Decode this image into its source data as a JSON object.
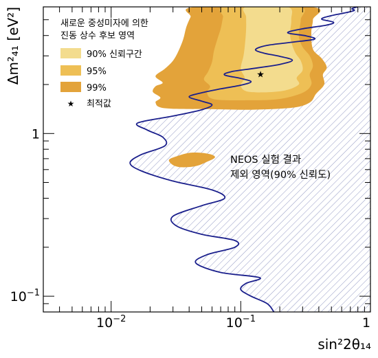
{
  "chart_data": {
    "type": "area",
    "title": "",
    "xlabel": "sin²2θ₁₄",
    "ylabel": "Δm²₄₁ [eV²]",
    "xscale": "log",
    "yscale": "log",
    "xlim": [
      0.003,
      1.0
    ],
    "ylim": [
      0.08,
      6.0
    ],
    "grid": false,
    "x_ticks": [
      {
        "value": 0.01,
        "base": "10",
        "exp": "−2"
      },
      {
        "value": 0.1,
        "base": "10",
        "exp": "−1"
      },
      {
        "value": 1.0,
        "base": "1",
        "exp": ""
      }
    ],
    "y_ticks": [
      {
        "value": 0.1,
        "base": "10",
        "exp": "−1"
      },
      {
        "value": 1.0,
        "base": "1",
        "exp": ""
      }
    ],
    "legend": {
      "position": "top-left",
      "header_line1": "새로운 중성미자에 의한",
      "header_line2": "진동 상수 후보 영역",
      "entries": [
        {
          "label": "90% 신뢰구간",
          "color": "#f3dc8e"
        },
        {
          "label": "95%",
          "color": "#eebf55"
        },
        {
          "label": "99%",
          "color": "#e3a33a"
        },
        {
          "label": "최적값",
          "color": "#7a3d12",
          "marker": "star"
        }
      ]
    },
    "annotation": {
      "line1": "NEOS 실험 결과",
      "line2": "제외 영역(90% 신뢰도)"
    },
    "best_fit": {
      "x": 0.142,
      "y": 2.32
    },
    "series": [
      {
        "name": "NEOS 실험 결과",
        "style": "exclusion-contour",
        "color": "#1a1f8c",
        "hatch_color": "#9aa0c8",
        "points": [
          [
            0.18,
            0.08
          ],
          [
            0.16,
            0.09
          ],
          [
            0.12,
            0.1
          ],
          [
            0.1,
            0.11
          ],
          [
            0.11,
            0.12
          ],
          [
            0.14,
            0.13
          ],
          [
            0.07,
            0.14
          ],
          [
            0.045,
            0.16
          ],
          [
            0.055,
            0.18
          ],
          [
            0.09,
            0.2
          ],
          [
            0.09,
            0.22
          ],
          [
            0.05,
            0.24
          ],
          [
            0.032,
            0.27
          ],
          [
            0.03,
            0.31
          ],
          [
            0.05,
            0.36
          ],
          [
            0.075,
            0.4
          ],
          [
            0.06,
            0.45
          ],
          [
            0.03,
            0.51
          ],
          [
            0.017,
            0.59
          ],
          [
            0.014,
            0.66
          ],
          [
            0.017,
            0.74
          ],
          [
            0.026,
            0.84
          ],
          [
            0.025,
            0.95
          ],
          [
            0.019,
            1.05
          ],
          [
            0.016,
            1.16
          ],
          [
            0.03,
            1.28
          ],
          [
            0.05,
            1.4
          ],
          [
            0.06,
            1.5
          ],
          [
            0.05,
            1.58
          ],
          [
            0.04,
            1.68
          ],
          [
            0.05,
            1.78
          ],
          [
            0.07,
            1.88
          ],
          [
            0.1,
            1.98
          ],
          [
            0.12,
            2.08
          ],
          [
            0.1,
            2.18
          ],
          [
            0.075,
            2.29
          ],
          [
            0.085,
            2.4
          ],
          [
            0.13,
            2.52
          ],
          [
            0.2,
            2.66
          ],
          [
            0.25,
            2.82
          ],
          [
            0.2,
            2.98
          ],
          [
            0.15,
            3.12
          ],
          [
            0.13,
            3.28
          ],
          [
            0.16,
            3.48
          ],
          [
            0.25,
            3.64
          ],
          [
            0.37,
            3.8
          ],
          [
            0.32,
            3.98
          ],
          [
            0.23,
            4.16
          ],
          [
            0.3,
            4.4
          ],
          [
            0.45,
            4.62
          ],
          [
            0.52,
            4.82
          ],
          [
            0.42,
            5.05
          ],
          [
            0.5,
            5.3
          ],
          [
            0.63,
            5.5
          ],
          [
            0.75,
            5.7
          ],
          [
            0.72,
            5.85
          ],
          [
            0.8,
            6.0
          ]
        ]
      },
      {
        "name": "99%",
        "style": "filled-region",
        "color": "#e3a33a",
        "points": [
          [
            0.026,
            1.43
          ],
          [
            0.022,
            1.55
          ],
          [
            0.024,
            1.66
          ],
          [
            0.021,
            1.8
          ],
          [
            0.022,
            1.95
          ],
          [
            0.025,
            2.05
          ],
          [
            0.022,
            2.25
          ],
          [
            0.026,
            2.5
          ],
          [
            0.03,
            2.8
          ],
          [
            0.033,
            3.2
          ],
          [
            0.036,
            3.8
          ],
          [
            0.038,
            4.5
          ],
          [
            0.041,
            5.2
          ],
          [
            0.045,
            6.0
          ],
          [
            0.35,
            6.0
          ],
          [
            0.36,
            5.0
          ],
          [
            0.35,
            4.2
          ],
          [
            0.36,
            3.3
          ],
          [
            0.42,
            2.9
          ],
          [
            0.46,
            2.55
          ],
          [
            0.43,
            2.3
          ],
          [
            0.44,
            2.0
          ],
          [
            0.38,
            1.75
          ],
          [
            0.34,
            1.55
          ],
          [
            0.25,
            1.44
          ],
          [
            0.12,
            1.4
          ],
          [
            0.06,
            1.41
          ],
          [
            0.026,
            1.43
          ]
        ],
        "island": [
          [
            0.028,
            0.69
          ],
          [
            0.033,
            0.73
          ],
          [
            0.04,
            0.76
          ],
          [
            0.05,
            0.76
          ],
          [
            0.06,
            0.74
          ],
          [
            0.063,
            0.71
          ],
          [
            0.055,
            0.67
          ],
          [
            0.045,
            0.63
          ],
          [
            0.035,
            0.62
          ],
          [
            0.03,
            0.64
          ],
          [
            0.028,
            0.69
          ]
        ]
      },
      {
        "name": "95%",
        "style": "filled-region",
        "color": "#eebf55",
        "points": [
          [
            0.063,
            1.62
          ],
          [
            0.055,
            1.78
          ],
          [
            0.058,
            1.95
          ],
          [
            0.052,
            2.15
          ],
          [
            0.056,
            2.4
          ],
          [
            0.06,
            2.75
          ],
          [
            0.062,
            3.2
          ],
          [
            0.066,
            3.8
          ],
          [
            0.07,
            4.4
          ],
          [
            0.073,
            5.2
          ],
          [
            0.076,
            6.0
          ],
          [
            0.28,
            6.0
          ],
          [
            0.29,
            5.0
          ],
          [
            0.28,
            4.0
          ],
          [
            0.3,
            3.4
          ],
          [
            0.34,
            3.0
          ],
          [
            0.36,
            2.6
          ],
          [
            0.34,
            2.3
          ],
          [
            0.35,
            2.0
          ],
          [
            0.3,
            1.78
          ],
          [
            0.2,
            1.63
          ],
          [
            0.12,
            1.6
          ],
          [
            0.063,
            1.62
          ]
        ]
      },
      {
        "name": "90% 신뢰구간",
        "style": "filled-region",
        "color": "#f3dc8e",
        "points": [
          [
            0.11,
            1.82
          ],
          [
            0.1,
            1.98
          ],
          [
            0.107,
            2.2
          ],
          [
            0.1,
            2.5
          ],
          [
            0.105,
            3.0
          ],
          [
            0.108,
            3.6
          ],
          [
            0.11,
            4.4
          ],
          [
            0.11,
            5.2
          ],
          [
            0.11,
            6.0
          ],
          [
            0.23,
            6.0
          ],
          [
            0.245,
            5.0
          ],
          [
            0.24,
            4.0
          ],
          [
            0.26,
            3.2
          ],
          [
            0.29,
            2.8
          ],
          [
            0.3,
            2.45
          ],
          [
            0.27,
            2.2
          ],
          [
            0.28,
            2.0
          ],
          [
            0.22,
            1.84
          ],
          [
            0.15,
            1.79
          ],
          [
            0.11,
            1.82
          ]
        ]
      }
    ]
  }
}
